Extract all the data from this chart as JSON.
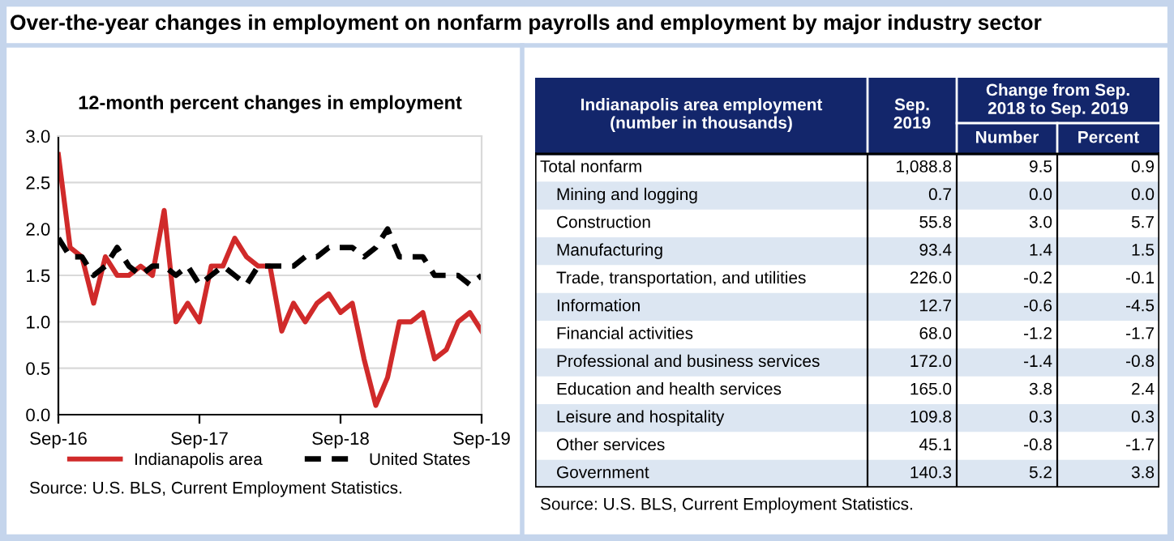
{
  "chart_data": [
    {
      "type": "line",
      "title": "Over-the-year changes in employment on nonfarm payrolls and employment by major industry sector",
      "subtitle": "12-month percent changes in employment",
      "categories": [
        "Sep-16",
        null,
        null,
        null,
        null,
        null,
        null,
        null,
        null,
        null,
        null,
        null,
        "Sep-17",
        null,
        null,
        null,
        null,
        null,
        null,
        null,
        null,
        null,
        null,
        null,
        "Sep-18",
        null,
        null,
        null,
        null,
        null,
        null,
        null,
        null,
        null,
        null,
        null,
        "Sep-19"
      ],
      "series": [
        {
          "name": "Indianapolis area",
          "color": "#d02a2a",
          "line_style": "solid",
          "values": [
            2.8,
            1.8,
            1.7,
            1.2,
            1.7,
            1.5,
            1.5,
            1.6,
            1.5,
            2.2,
            1.0,
            1.2,
            1.0,
            1.6,
            1.6,
            1.9,
            1.7,
            1.6,
            1.6,
            0.9,
            1.2,
            1.0,
            1.2,
            1.3,
            1.1,
            1.2,
            0.6,
            0.1,
            0.4,
            1.0,
            1.0,
            1.1,
            0.6,
            0.7,
            1.0,
            1.1,
            0.9
          ]
        },
        {
          "name": "United States",
          "color": "#000000",
          "line_style": "dashed",
          "values": [
            1.9,
            1.7,
            1.7,
            1.5,
            1.6,
            1.8,
            1.6,
            1.5,
            1.6,
            1.6,
            1.5,
            1.6,
            1.4,
            1.5,
            1.6,
            1.5,
            1.4,
            1.6,
            1.6,
            1.6,
            1.6,
            1.7,
            1.7,
            1.8,
            1.8,
            1.8,
            1.7,
            1.8,
            2.0,
            1.7,
            1.7,
            1.7,
            1.5,
            1.5,
            1.5,
            1.4,
            1.5
          ]
        }
      ],
      "ylim": [
        0,
        3.0
      ],
      "yticks": [
        {
          "value": 0,
          "label": "0.0"
        },
        {
          "value": 0.5,
          "label": "0.5"
        },
        {
          "value": 1.0,
          "label": "1.0"
        },
        {
          "value": 1.5,
          "label": "1.5"
        },
        {
          "value": 2.0,
          "label": "2.0"
        },
        {
          "value": 2.5,
          "label": "2.5"
        },
        {
          "value": 3.0,
          "label": "3.0"
        }
      ],
      "grid": "y",
      "legend": "bottom",
      "marker": "none",
      "annotations": [
        "Source: U.S. BLS, Current Employment Statistics."
      ]
    },
    {
      "type": "other",
      "title": "Indianapolis area employment (number in thousands)",
      "categories": [
        "Total nonfarm",
        "Mining and logging",
        "Construction",
        "Manufacturing",
        "Trade, transportation, and utilities",
        "Information",
        "Financial activities",
        "Professional and business services",
        "Education and health services",
        "Leisure and hospitality",
        "Other services",
        "Government"
      ],
      "series": [
        {
          "name": "Sep. 2019",
          "values": [
            1088.8,
            0.7,
            55.8,
            93.4,
            226.0,
            12.7,
            68.0,
            172.0,
            165.0,
            109.8,
            45.1,
            140.3
          ],
          "value_labels": [
            "1,088.8",
            "0.7",
            "55.8",
            "93.4",
            "226.0",
            "12.7",
            "68.0",
            "172.0",
            "165.0",
            "109.8",
            "45.1",
            "140.3"
          ]
        },
        {
          "name": "Number",
          "values": [
            9.5,
            0.0,
            3.0,
            1.4,
            -0.2,
            -0.6,
            -1.2,
            -1.4,
            3.8,
            0.3,
            -0.8,
            5.2
          ],
          "value_labels": [
            "9.5",
            "0.0",
            "3.0",
            "1.4",
            "-0.2",
            "-0.6",
            "-1.2",
            "-1.4",
            "3.8",
            "0.3",
            "-0.8",
            "5.2"
          ]
        },
        {
          "name": "Percent",
          "values": [
            0.9,
            0.0,
            5.7,
            1.5,
            -0.1,
            -4.5,
            -1.7,
            -0.8,
            2.4,
            0.3,
            -1.7,
            3.8
          ],
          "value_labels": [
            "0.9",
            "0.0",
            "5.7",
            "1.5",
            "-0.1",
            "-4.5",
            "-1.7",
            "-0.8",
            "2.4",
            "0.3",
            "-1.7",
            "3.8"
          ]
        }
      ],
      "annotations": [
        "Change from Sep. 2018 to Sep. 2019",
        "Source: U.S. BLS, Current Employment Statistics."
      ]
    }
  ]
}
